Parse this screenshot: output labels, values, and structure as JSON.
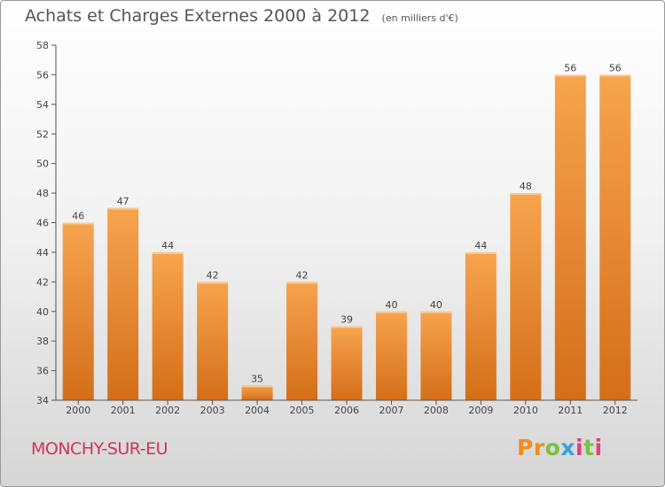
{
  "header": {
    "title": "Achats et Charges Externes 2000 à 2012",
    "unit": "(en milliers d'€)"
  },
  "footer": {
    "commune": "MONCHY-SUR-EU",
    "brand": "Proxiti"
  },
  "colors": {
    "bar_top": "#f7a44f",
    "bar_bottom": "#d46e19",
    "commune": "#d0345e",
    "axis": "#555555"
  },
  "chart_data": {
    "type": "bar",
    "title": "Achats et Charges Externes 2000 à 2012",
    "subtitle": "(en milliers d'€)",
    "categories": [
      "2000",
      "2001",
      "2002",
      "2003",
      "2004",
      "2005",
      "2006",
      "2007",
      "2008",
      "2009",
      "2010",
      "2011",
      "2012"
    ],
    "values": [
      46,
      47,
      44,
      42,
      35,
      42,
      39,
      40,
      40,
      44,
      48,
      56,
      56
    ],
    "ylim": [
      34,
      58
    ],
    "yticks": [
      34,
      36,
      38,
      40,
      42,
      44,
      46,
      48,
      50,
      52,
      54,
      56,
      58
    ],
    "grid": false,
    "data_labels": true,
    "xlabel": "",
    "ylabel": ""
  }
}
